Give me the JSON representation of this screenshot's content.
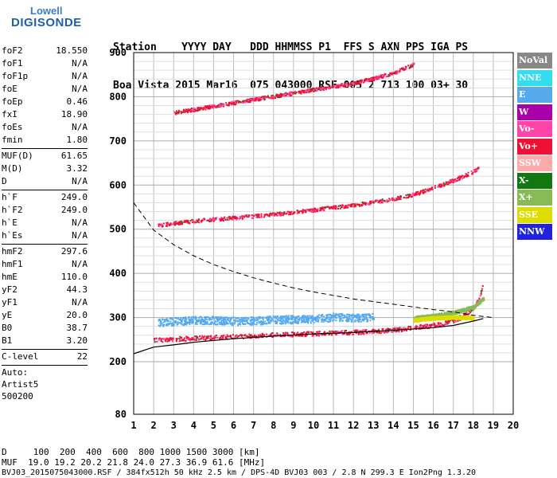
{
  "logo": {
    "top": "Lowell",
    "bottom": "DIGISONDE"
  },
  "header": {
    "line1": "Station    YYYY DAY   DDD HHMMSS P1  FFS S AXN PPS IGA PS",
    "line2": "Boa Vista 2015 Mar16  075 043000 RSF 005 2 713 100 03+ 30"
  },
  "params_group1": [
    {
      "label": "foF2",
      "value": "18.550"
    },
    {
      "label": "foF1",
      "value": "N/A"
    },
    {
      "label": "foF1p",
      "value": "N/A"
    },
    {
      "label": "foE",
      "value": "N/A"
    },
    {
      "label": "foEp",
      "value": "0.46"
    },
    {
      "label": "fxI",
      "value": "18.90"
    },
    {
      "label": "foEs",
      "value": "N/A"
    },
    {
      "label": "fmin",
      "value": "1.80"
    }
  ],
  "params_group2": [
    {
      "label": "MUF(D)",
      "value": "61.65"
    },
    {
      "label": "M(D)",
      "value": "3.32"
    },
    {
      "label": "D",
      "value": "N/A"
    }
  ],
  "params_group3": [
    {
      "label": "h`F",
      "value": "249.0"
    },
    {
      "label": "h`F2",
      "value": "249.0"
    },
    {
      "label": "h`E",
      "value": "N/A"
    },
    {
      "label": "h`Es",
      "value": "N/A"
    }
  ],
  "params_group4": [
    {
      "label": "hmF2",
      "value": "297.6"
    },
    {
      "label": "hmF1",
      "value": "N/A"
    },
    {
      "label": "hmE",
      "value": "110.0"
    },
    {
      "label": "yF2",
      "value": "44.3"
    },
    {
      "label": "yF1",
      "value": "N/A"
    },
    {
      "label": "yE",
      "value": "20.0"
    },
    {
      "label": "B0",
      "value": "38.7"
    },
    {
      "label": "B1",
      "value": "3.20"
    }
  ],
  "params_group5": [
    {
      "label": "C-level",
      "value": "22"
    }
  ],
  "extra": {
    "line1": "Auto:",
    "line2": "Artist5",
    "line3": "500200"
  },
  "legend": [
    {
      "label": "NoVal",
      "color": "#888888"
    },
    {
      "label": "NNE",
      "color": "#33ddf0"
    },
    {
      "label": "E",
      "color": "#55aaee"
    },
    {
      "label": "W",
      "color": "#aa00aa"
    },
    {
      "label": "Vo-",
      "color": "#ff44aa"
    },
    {
      "label": "Vo+",
      "color": "#ee1133"
    },
    {
      "label": "SSW",
      "color": "#ffaaaa"
    },
    {
      "label": "X-",
      "color": "#117711"
    },
    {
      "label": "X+",
      "color": "#88bb55"
    },
    {
      "label": "SSE",
      "color": "#dddd00"
    },
    {
      "label": "NNW",
      "color": "#2222dd"
    }
  ],
  "chart_data": {
    "type": "scatter",
    "title": "",
    "xlabel": "",
    "ylabel": "",
    "xlim": [
      1,
      20
    ],
    "ylim": [
      80,
      900
    ],
    "x_ticks": [
      "1",
      "2",
      "3",
      "4",
      "5",
      "6",
      "7",
      "8",
      "9",
      "10",
      "11",
      "12",
      "13",
      "14",
      "15",
      "16",
      "17",
      "18",
      "19",
      "20"
    ],
    "y_ticks": [
      "80",
      "200",
      "300",
      "400",
      "500",
      "600",
      "700",
      "800",
      "900"
    ],
    "series": [
      {
        "name": "Vo+",
        "trace": [
          [
            2.0,
            250
          ],
          [
            4,
            255
          ],
          [
            6,
            258
          ],
          [
            8,
            262
          ],
          [
            10,
            265
          ],
          [
            12,
            268
          ],
          [
            14,
            273
          ],
          [
            15,
            278
          ],
          [
            16,
            284
          ],
          [
            16.5,
            288
          ],
          [
            17,
            295
          ],
          [
            17.5,
            305
          ],
          [
            18,
            325
          ],
          [
            18.3,
            345
          ],
          [
            18.5,
            390
          ]
        ]
      },
      {
        "name": "Vo+",
        "trace": [
          [
            2.2,
            510
          ],
          [
            4,
            520
          ],
          [
            6,
            527
          ],
          [
            8,
            535
          ],
          [
            10,
            545
          ],
          [
            12,
            556
          ],
          [
            14,
            570
          ],
          [
            15,
            580
          ],
          [
            16,
            595
          ],
          [
            17,
            612
          ],
          [
            17.5,
            622
          ],
          [
            18,
            632
          ],
          [
            18.3,
            642
          ]
        ]
      },
      {
        "name": "Vo+",
        "trace": [
          [
            3,
            765
          ],
          [
            5,
            780
          ],
          [
            7,
            795
          ],
          [
            9,
            810
          ],
          [
            11,
            825
          ],
          [
            12,
            832
          ],
          [
            13,
            843
          ],
          [
            14,
            855
          ],
          [
            15,
            875
          ]
        ]
      },
      {
        "name": "E",
        "trace": [
          [
            2.2,
            290
          ],
          [
            3,
            292
          ],
          [
            4,
            295
          ],
          [
            5,
            295
          ],
          [
            6,
            293
          ],
          [
            7,
            294
          ],
          [
            8,
            296
          ],
          [
            9,
            297
          ],
          [
            10,
            298
          ],
          [
            11,
            302
          ],
          [
            12,
            300
          ],
          [
            13,
            302
          ]
        ]
      },
      {
        "name": "X+",
        "trace": [
          [
            15,
            300
          ],
          [
            16,
            305
          ],
          [
            17,
            312
          ],
          [
            18,
            325
          ],
          [
            18.5,
            345
          ]
        ]
      },
      {
        "name": "SSE",
        "trace": [
          [
            15,
            295
          ],
          [
            16,
            300
          ],
          [
            17,
            302
          ],
          [
            18,
            300
          ]
        ]
      }
    ],
    "true_height_profile": [
      [
        1,
        218
      ],
      [
        2,
        233
      ],
      [
        3,
        238
      ],
      [
        4,
        244
      ],
      [
        6,
        252
      ],
      [
        8,
        258
      ],
      [
        10,
        263
      ],
      [
        12,
        266
      ],
      [
        14,
        271
      ],
      [
        16,
        277
      ],
      [
        17,
        282
      ],
      [
        18,
        292
      ],
      [
        18.5,
        297.6
      ]
    ],
    "muf_curve": [
      [
        1,
        560
      ],
      [
        2,
        498
      ],
      [
        3,
        465
      ],
      [
        4,
        440
      ],
      [
        5,
        420
      ],
      [
        6,
        404
      ],
      [
        7,
        390
      ],
      [
        8,
        378
      ],
      [
        9,
        367
      ],
      [
        10,
        358
      ],
      [
        12,
        342
      ],
      [
        14,
        330
      ],
      [
        16,
        318
      ],
      [
        17,
        313
      ],
      [
        18,
        305
      ],
      [
        19,
        300
      ]
    ]
  },
  "footer": {
    "d_line": "D     100  200  400  600  800 1000 1500 3000 [km]",
    "muf_line": "MUF  19.0 19.2 20.2 21.8 24.0 27.3 36.9 61.6 [MHz]",
    "info_line": "BVJ03_2015075043000.RSF / 384fx512h 50 kHz 2.5 km / DPS-4D BVJ03 003 / 2.8 N 299.3 E Ion2Png 1.3.20"
  }
}
